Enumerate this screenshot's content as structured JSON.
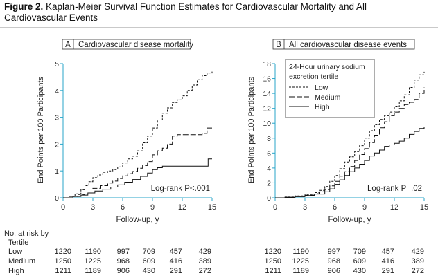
{
  "figure": {
    "number": "Figure 2.",
    "caption": "Kaplan-Meier Survival Function Estimates for Cardiovascular Mortality and All Cardiovascular Events"
  },
  "chart_data": [
    {
      "type": "line",
      "panel_letter": "A",
      "title": "Cardiovascular disease mortality",
      "xlabel": "Follow-up, y",
      "ylabel": "End Points per 100 Participants",
      "xlim": [
        0,
        15
      ],
      "ylim": [
        0,
        5
      ],
      "xticks": [
        0,
        3,
        6,
        9,
        12,
        15
      ],
      "yticks": [
        0,
        1,
        2,
        3,
        4,
        5
      ],
      "annotation": "Log-rank P<.001",
      "series": [
        {
          "name": "Low",
          "style": "short-dash",
          "x": [
            0,
            0.6,
            1.2,
            1.8,
            2.2,
            2.6,
            3.0,
            3.5,
            4.0,
            4.5,
            5.0,
            5.5,
            6.0,
            6.5,
            7.0,
            7.5,
            8.0,
            8.5,
            9.0,
            9.5,
            10.0,
            10.5,
            11.0,
            11.5,
            12.0,
            12.5,
            13.0,
            13.5,
            14.0,
            14.5,
            15.0
          ],
          "y": [
            0,
            0.05,
            0.15,
            0.3,
            0.45,
            0.6,
            0.75,
            0.85,
            0.95,
            1.0,
            1.05,
            1.15,
            1.3,
            1.45,
            1.55,
            1.75,
            2.05,
            2.3,
            2.6,
            2.9,
            3.15,
            3.35,
            3.55,
            3.65,
            3.8,
            4.0,
            4.2,
            4.4,
            4.55,
            4.65,
            4.7
          ]
        },
        {
          "name": "Medium",
          "style": "long-dash",
          "x": [
            0,
            0.8,
            1.5,
            2.2,
            3.0,
            3.8,
            4.5,
            5.0,
            5.5,
            6.0,
            6.5,
            7.0,
            7.5,
            8.0,
            8.5,
            9.0,
            9.5,
            10.0,
            10.5,
            11.0,
            11.5,
            12.0,
            13.0,
            14.0,
            14.5,
            15.0
          ],
          "y": [
            0,
            0.05,
            0.12,
            0.22,
            0.35,
            0.45,
            0.55,
            0.62,
            0.72,
            0.82,
            0.9,
            0.98,
            1.1,
            1.2,
            1.35,
            1.6,
            1.75,
            1.85,
            2.0,
            2.3,
            2.35,
            2.35,
            2.35,
            2.4,
            2.6,
            2.6
          ]
        },
        {
          "name": "High",
          "style": "solid",
          "x": [
            0,
            1.0,
            1.8,
            2.5,
            3.2,
            4.0,
            4.8,
            5.5,
            6.2,
            7.0,
            7.8,
            8.5,
            9.0,
            9.5,
            10.0,
            11.0,
            12.0,
            13.0,
            14.0,
            14.6,
            15.0
          ],
          "y": [
            0,
            0.05,
            0.1,
            0.18,
            0.25,
            0.32,
            0.4,
            0.48,
            0.58,
            0.68,
            0.8,
            0.92,
            1.05,
            1.12,
            1.18,
            1.18,
            1.18,
            1.18,
            1.18,
            1.45,
            1.45
          ]
        }
      ]
    },
    {
      "type": "line",
      "panel_letter": "B",
      "title": "All cardiovascular disease events",
      "xlabel": "Follow-up, y",
      "ylabel": "End Points per 100 Participants",
      "xlim": [
        0,
        15
      ],
      "ylim": [
        0,
        18
      ],
      "xticks": [
        0,
        3,
        6,
        9,
        12,
        15
      ],
      "yticks": [
        0,
        2,
        4,
        6,
        8,
        10,
        12,
        14,
        16,
        18
      ],
      "annotation": "Log-rank P=.02",
      "legend": {
        "title_line1": "24-Hour urinary sodium",
        "title_line2": "excretion tertile",
        "placement": "top-left"
      },
      "series": [
        {
          "name": "Low",
          "style": "short-dash",
          "x": [
            0,
            1.0,
            2.0,
            3.0,
            4.0,
            4.5,
            5.0,
            5.5,
            6.0,
            6.5,
            7.0,
            7.5,
            8.0,
            8.5,
            9.0,
            9.5,
            10.0,
            10.5,
            11.0,
            11.5,
            12.0,
            12.5,
            13.0,
            13.5,
            14.0,
            14.5,
            15.0
          ],
          "y": [
            0,
            0.1,
            0.25,
            0.4,
            0.7,
            1.0,
            1.5,
            2.2,
            3.0,
            3.9,
            4.8,
            5.5,
            6.2,
            7.0,
            8.0,
            9.0,
            9.8,
            10.5,
            11.0,
            11.5,
            12.2,
            13.0,
            13.8,
            14.8,
            15.8,
            16.5,
            16.9
          ]
        },
        {
          "name": "Medium",
          "style": "long-dash",
          "x": [
            0,
            1.0,
            2.0,
            3.0,
            4.0,
            4.5,
            5.0,
            5.5,
            6.0,
            6.5,
            7.0,
            7.5,
            8.0,
            8.5,
            9.0,
            9.5,
            10.0,
            10.5,
            11.0,
            11.5,
            12.0,
            12.5,
            13.0,
            13.5,
            14.0,
            14.5,
            15.0
          ],
          "y": [
            0,
            0.08,
            0.2,
            0.35,
            0.55,
            0.8,
            1.1,
            1.6,
            2.2,
            2.9,
            3.5,
            4.2,
            5.0,
            5.8,
            6.6,
            7.4,
            8.4,
            9.4,
            10.2,
            11.0,
            11.5,
            12.0,
            12.5,
            12.8,
            13.2,
            14.0,
            14.8
          ]
        },
        {
          "name": "High",
          "style": "solid",
          "x": [
            0,
            1.0,
            2.0,
            3.0,
            4.0,
            5.0,
            5.5,
            6.0,
            6.5,
            7.0,
            7.5,
            8.0,
            8.5,
            9.0,
            9.5,
            10.0,
            10.5,
            11.0,
            11.5,
            12.0,
            12.5,
            13.0,
            13.5,
            14.0,
            14.5,
            15.0
          ],
          "y": [
            0,
            0.05,
            0.15,
            0.3,
            0.5,
            0.8,
            1.2,
            1.8,
            2.4,
            3.0,
            3.5,
            4.0,
            4.5,
            5.0,
            5.6,
            6.0,
            6.4,
            6.9,
            7.1,
            7.3,
            7.6,
            8.0,
            8.5,
            8.9,
            9.3,
            9.5
          ]
        }
      ]
    }
  ],
  "risk_table": {
    "heading": "No. at risk by",
    "subheading": "Tertile",
    "rows": [
      {
        "label": "Low",
        "values": [
          "1220",
          "1190",
          "997",
          "709",
          "457",
          "429"
        ]
      },
      {
        "label": "Medium",
        "values": [
          "1250",
          "1225",
          "968",
          "609",
          "416",
          "389"
        ]
      },
      {
        "label": "High",
        "values": [
          "1211",
          "1189",
          "906",
          "430",
          "291",
          "272"
        ]
      }
    ]
  },
  "colors": {
    "axis": "#29a6c9",
    "line": "#111111",
    "text": "#222222"
  }
}
